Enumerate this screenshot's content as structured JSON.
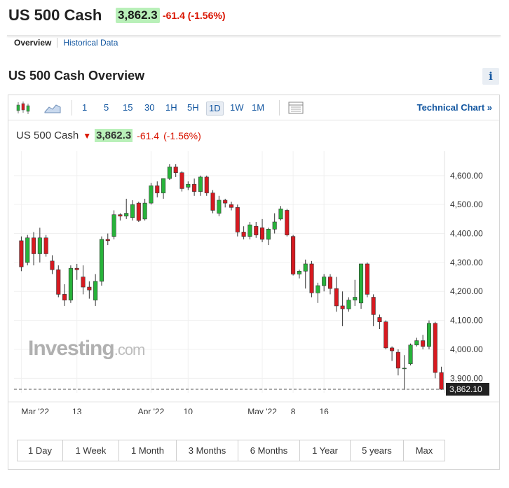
{
  "header": {
    "instrument": "US 500 Cash",
    "price": "3,862.3",
    "change": "-61.4 (-1.56%)"
  },
  "tabs": [
    {
      "label": "Overview",
      "active": true
    },
    {
      "label": "Historical Data",
      "active": false
    }
  ],
  "section_title": "US 500 Cash Overview",
  "info_label": "i",
  "toolbar": {
    "icons": [
      "candlestick-icon",
      "mountain-chart-icon"
    ],
    "timeframes": [
      "1",
      "5",
      "15",
      "30",
      "1H",
      "5H",
      "1D",
      "1W",
      "1M"
    ],
    "active_timeframe": "1D",
    "tech_chart": "Technical Chart »"
  },
  "legend": {
    "name": "US 500 Cash",
    "price": "3,862.3",
    "change": "-61.4",
    "pct": "(-1.56%)"
  },
  "watermark": {
    "main": "Investing",
    "suffix": ".com"
  },
  "ranges": [
    "1 Day",
    "1 Week",
    "1 Month",
    "3 Months",
    "6 Months",
    "1 Year",
    "5 years",
    "Max"
  ],
  "colors": {
    "up": "#27b33a",
    "down": "#d71920",
    "accent": "#1256a0",
    "price_bg": "#b9f0b9"
  },
  "chart_data": {
    "type": "candlestick",
    "ylim": [
      3850,
      4660
    ],
    "y_ticks": [
      "4,600.00",
      "4,500.00",
      "4,400.00",
      "4,300.00",
      "4,200.00",
      "4,100.00",
      "4,000.00",
      "3,900.00"
    ],
    "y_tick_values": [
      4600,
      4500,
      4400,
      4300,
      4200,
      4100,
      4000,
      3900
    ],
    "last_price_label": "3,862.10",
    "last_price": 3862.1,
    "x_labels": [
      {
        "label": "Mar '22",
        "index": 0
      },
      {
        "label": "13",
        "index": 9
      },
      {
        "label": "Apr '22",
        "index": 21
      },
      {
        "label": "10",
        "index": 27
      },
      {
        "label": "May '22",
        "index": 39
      },
      {
        "label": "8",
        "index": 44
      },
      {
        "label": "16",
        "index": 49
      }
    ],
    "ohlc": [
      [
        4375,
        4390,
        4270,
        4285
      ],
      [
        4300,
        4395,
        4290,
        4385
      ],
      [
        4385,
        4405,
        4290,
        4330
      ],
      [
        4330,
        4420,
        4300,
        4385
      ],
      [
        4385,
        4395,
        4320,
        4330
      ],
      [
        4305,
        4325,
        4260,
        4275
      ],
      [
        4275,
        4290,
        4180,
        4190
      ],
      [
        4190,
        4225,
        4150,
        4170
      ],
      [
        4170,
        4290,
        4160,
        4280
      ],
      [
        4280,
        4295,
        4240,
        4275
      ],
      [
        4250,
        4290,
        4190,
        4215
      ],
      [
        4215,
        4235,
        4175,
        4205
      ],
      [
        4170,
        4260,
        4150,
        4235
      ],
      [
        4235,
        4390,
        4220,
        4380
      ],
      [
        4380,
        4400,
        4360,
        4375
      ],
      [
        4390,
        4480,
        4380,
        4465
      ],
      [
        4465,
        4470,
        4445,
        4460
      ],
      [
        4460,
        4520,
        4450,
        4470
      ],
      [
        4455,
        4515,
        4445,
        4500
      ],
      [
        4505,
        4510,
        4440,
        4445
      ],
      [
        4450,
        4520,
        4445,
        4505
      ],
      [
        4505,
        4575,
        4500,
        4565
      ],
      [
        4565,
        4580,
        4525,
        4540
      ],
      [
        4540,
        4590,
        4520,
        4590
      ],
      [
        4590,
        4640,
        4585,
        4630
      ],
      [
        4630,
        4640,
        4595,
        4610
      ],
      [
        4610,
        4615,
        4545,
        4555
      ],
      [
        4560,
        4580,
        4550,
        4570
      ],
      [
        4570,
        4590,
        4530,
        4545
      ],
      [
        4545,
        4600,
        4530,
        4595
      ],
      [
        4595,
        4600,
        4530,
        4540
      ],
      [
        4540,
        4550,
        4470,
        4480
      ],
      [
        4470,
        4530,
        4460,
        4515
      ],
      [
        4515,
        4520,
        4490,
        4505
      ],
      [
        4500,
        4510,
        4480,
        4490
      ],
      [
        4490,
        4500,
        4390,
        4405
      ],
      [
        4405,
        4425,
        4380,
        4390
      ],
      [
        4390,
        4440,
        4380,
        4430
      ],
      [
        4425,
        4440,
        4385,
        4395
      ],
      [
        4420,
        4450,
        4370,
        4380
      ],
      [
        4380,
        4420,
        4360,
        4415
      ],
      [
        4415,
        4470,
        4400,
        4440
      ],
      [
        4450,
        4495,
        4445,
        4485
      ],
      [
        4480,
        4485,
        4390,
        4395
      ],
      [
        4390,
        4395,
        4255,
        4260
      ],
      [
        4260,
        4275,
        4245,
        4270
      ],
      [
        4270,
        4310,
        4210,
        4295
      ],
      [
        4295,
        4305,
        4180,
        4195
      ],
      [
        4195,
        4230,
        4160,
        4220
      ],
      [
        4220,
        4260,
        4200,
        4250
      ],
      [
        4250,
        4260,
        4190,
        4210
      ],
      [
        4210,
        4250,
        4130,
        4150
      ],
      [
        4150,
        4200,
        4080,
        4140
      ],
      [
        4140,
        4180,
        4130,
        4170
      ],
      [
        4170,
        4240,
        4150,
        4180
      ],
      [
        4160,
        4295,
        4140,
        4295
      ],
      [
        4295,
        4300,
        4180,
        4190
      ],
      [
        4180,
        4190,
        4080,
        4120
      ],
      [
        4110,
        4120,
        4070,
        4095
      ],
      [
        4095,
        4100,
        4000,
        4005
      ],
      [
        4005,
        4010,
        3960,
        3995
      ],
      [
        3990,
        4000,
        3910,
        3935
      ],
      [
        3935,
        3980,
        3860,
        3935
      ],
      [
        3950,
        4020,
        3945,
        4015
      ],
      [
        4015,
        4040,
        4010,
        4030
      ],
      [
        4030,
        4050,
        4000,
        4010
      ],
      [
        4010,
        4100,
        4000,
        4090
      ],
      [
        4090,
        4095,
        3900,
        3920
      ],
      [
        3920,
        3940,
        3860,
        3862
      ]
    ]
  }
}
